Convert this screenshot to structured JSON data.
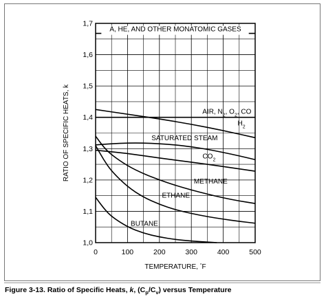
{
  "caption": {
    "prefix": "Figure 3-13. Ratio of Specific Heats, ",
    "k": "k",
    "comma": ", (C",
    "p": "p",
    "slash": "/C",
    "v": "v",
    "suffix": ") versus Temperature"
  },
  "chart_data": {
    "type": "line",
    "xlabel": "TEMPERATURE, °F",
    "ylabel": "RATIO OF SPECIFIC HEATS, k",
    "xlim": [
      0,
      500
    ],
    "ylim": [
      1.0,
      1.7
    ],
    "x_ticks": [
      0,
      100,
      200,
      300,
      400,
      500
    ],
    "x_tick_labels": [
      "0",
      "100",
      "200",
      "300",
      "400",
      "500"
    ],
    "y_ticks": [
      1.0,
      1.1,
      1.2,
      1.3,
      1.4,
      1.5,
      1.6,
      1.7
    ],
    "y_tick_labels": [
      "1,0",
      "1,1",
      "1,2",
      "1,3",
      "1,4",
      "1,5",
      "1,6",
      "1,7"
    ],
    "grid": true,
    "series": [
      {
        "name": "A, HE, AND OTHER MONATOMIC GASES",
        "x": [
          0,
          500
        ],
        "y": [
          1.668,
          1.668
        ]
      },
      {
        "name": "AIR, N2, O2, CO",
        "x": [
          0,
          500
        ],
        "y": [
          1.4,
          1.4
        ]
      },
      {
        "name": "H2",
        "x": [
          0,
          100,
          200,
          300,
          400,
          500
        ],
        "y": [
          1.425,
          1.41,
          1.395,
          1.378,
          1.358,
          1.335
        ]
      },
      {
        "name": "SATURATED STEAM",
        "x": [
          0,
          50,
          100,
          150,
          200,
          250,
          300,
          350,
          400,
          450,
          500
        ],
        "y": [
          1.312,
          1.316,
          1.318,
          1.318,
          1.316,
          1.312,
          1.306,
          1.298,
          1.288,
          1.277,
          1.265
        ]
      },
      {
        "name": "CO2",
        "x": [
          0,
          100,
          200,
          300,
          400,
          500
        ],
        "y": [
          1.295,
          1.285,
          1.27,
          1.257,
          1.243,
          1.228
        ]
      },
      {
        "name": "METHANE",
        "x": [
          0,
          25,
          50,
          100,
          150,
          200,
          250,
          300,
          350,
          400,
          450,
          500
        ],
        "y": [
          1.34,
          1.305,
          1.28,
          1.245,
          1.22,
          1.2,
          1.183,
          1.168,
          1.155,
          1.143,
          1.133,
          1.125
        ]
      },
      {
        "name": "ETHANE",
        "x": [
          0,
          25,
          50,
          100,
          150,
          200,
          250,
          300,
          350,
          400,
          450,
          500
        ],
        "y": [
          1.31,
          1.265,
          1.228,
          1.178,
          1.145,
          1.122,
          1.105,
          1.093,
          1.083,
          1.075,
          1.068,
          1.062
        ]
      },
      {
        "name": "BUTANE",
        "x": [
          0,
          25,
          50,
          100,
          150,
          200,
          250,
          300,
          350,
          380
        ],
        "y": [
          1.145,
          1.11,
          1.083,
          1.05,
          1.03,
          1.018,
          1.01,
          1.005,
          1.002,
          1.0
        ]
      }
    ],
    "curve_labels": {
      "monatomic": "A, HE, AND OTHER MONATOMIC GASES",
      "air_main": "AIR, N",
      "air_sub1": "2",
      "air_mid1": ", O",
      "air_sub2": "2",
      "air_tail": ", CO",
      "h2_main": "H",
      "h2_sub": "2",
      "steam": "SATURATED STEAM",
      "co2_main": "CO",
      "co2_sub": "2",
      "methane": "METHANE",
      "ethane": "ETHANE",
      "butane": "BUTANE"
    },
    "xlabel_main": "TEMPERATURE, ",
    "xlabel_deg": "°",
    "xlabel_unit": "F"
  }
}
